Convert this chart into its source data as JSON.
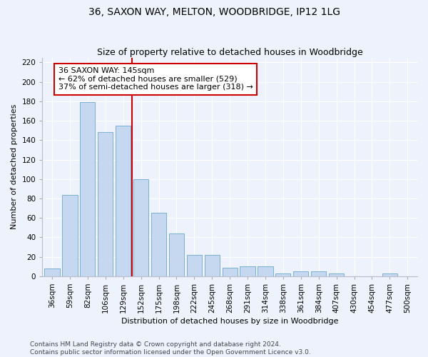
{
  "title1": "36, SAXON WAY, MELTON, WOODBRIDGE, IP12 1LG",
  "title2": "Size of property relative to detached houses in Woodbridge",
  "xlabel": "Distribution of detached houses by size in Woodbridge",
  "ylabel": "Number of detached properties",
  "categories": [
    "36sqm",
    "59sqm",
    "82sqm",
    "106sqm",
    "129sqm",
    "152sqm",
    "175sqm",
    "198sqm",
    "222sqm",
    "245sqm",
    "268sqm",
    "291sqm",
    "314sqm",
    "338sqm",
    "361sqm",
    "384sqm",
    "407sqm",
    "430sqm",
    "454sqm",
    "477sqm",
    "500sqm"
  ],
  "values": [
    8,
    84,
    179,
    148,
    155,
    100,
    65,
    44,
    22,
    22,
    9,
    10,
    10,
    3,
    5,
    5,
    3,
    0,
    0,
    3,
    0
  ],
  "bar_color": "#c5d8f0",
  "bar_edge_color": "#7aafd4",
  "vline_color": "#cc0000",
  "vline_pos": 4.5,
  "annotation_line1": "36 SAXON WAY: 145sqm",
  "annotation_line2": "← 62% of detached houses are smaller (529)",
  "annotation_line3": "37% of semi-detached houses are larger (318) →",
  "ylim_max": 225,
  "yticks": [
    0,
    20,
    40,
    60,
    80,
    100,
    120,
    140,
    160,
    180,
    200,
    220
  ],
  "footer1": "Contains HM Land Registry data © Crown copyright and database right 2024.",
  "footer2": "Contains public sector information licensed under the Open Government Licence v3.0.",
  "bg_color": "#eef2fc",
  "grid_color": "#ffffff",
  "title1_fontsize": 10,
  "title2_fontsize": 9,
  "axis_fontsize": 8,
  "tick_fontsize": 7.5,
  "annot_fontsize": 8,
  "footer_fontsize": 6.5
}
